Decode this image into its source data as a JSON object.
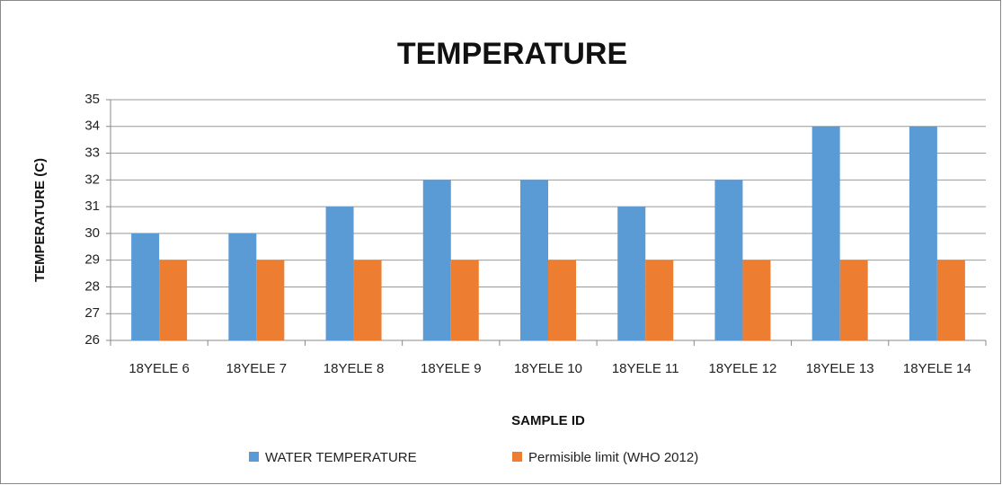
{
  "chart_data": {
    "type": "bar",
    "title": "TEMPERATURE",
    "x_label": "SAMPLE ID",
    "y_label": "TEMPERATURE (C)",
    "categories": [
      "18YELE 6",
      "18YELE 7",
      "18YELE 8",
      "18YELE 9",
      "18YELE 10",
      "18YELE 11",
      "18YELE 12",
      "18YELE 13",
      "18YELE 14"
    ],
    "series": [
      {
        "name": "WATER TEMPERATURE",
        "color": "#5b9bd5",
        "values": [
          30,
          30,
          31,
          32,
          32,
          31,
          32,
          34,
          34
        ]
      },
      {
        "name": "Permisible limit (WHO 2012)",
        "color": "#ed7d31",
        "values": [
          29,
          29,
          29,
          29,
          29,
          29,
          29,
          29,
          29
        ]
      }
    ],
    "ylim": [
      26,
      35
    ],
    "yticks": [
      26,
      27,
      28,
      29,
      30,
      31,
      32,
      33,
      34,
      35
    ],
    "grid": true,
    "legend": "bottom"
  }
}
